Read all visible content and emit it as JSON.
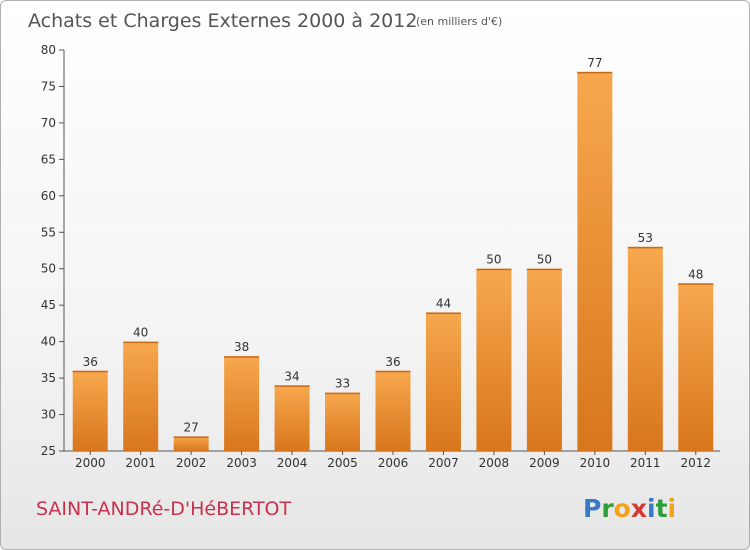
{
  "header": {
    "title": "Achats et Charges Externes 2000 à 2012",
    "unit": "(en milliers d'€)"
  },
  "footer": {
    "city": "SAINT-ANDRé-D'HéBERTOT",
    "brand_letters": [
      {
        "ch": "P",
        "color": "#3a78c8"
      },
      {
        "ch": "r",
        "color": "#2f9e3a"
      },
      {
        "ch": "o",
        "color": "#f2a31b"
      },
      {
        "ch": "x",
        "color": "#d63a2f"
      },
      {
        "ch": "i",
        "color": "#3a78c8"
      },
      {
        "ch": "t",
        "color": "#2f9e3a"
      },
      {
        "ch": "i",
        "color": "#f2a31b"
      }
    ]
  },
  "chart_data": {
    "type": "bar",
    "title": "Achats et Charges Externes 2000 à 2012",
    "subtitle": "(en milliers d'€)",
    "categories": [
      "2000",
      "2001",
      "2002",
      "2003",
      "2004",
      "2005",
      "2006",
      "2007",
      "2008",
      "2009",
      "2010",
      "2011",
      "2012"
    ],
    "values": [
      36,
      40,
      27,
      38,
      34,
      33,
      36,
      44,
      50,
      50,
      77,
      53,
      48
    ],
    "ylim": [
      25,
      80
    ],
    "yticks": [
      25,
      30,
      35,
      40,
      45,
      50,
      55,
      60,
      65,
      70,
      75,
      80
    ],
    "grid": false,
    "bar_color": "#f0922e",
    "bar_color_light": "#f7a84e",
    "bar_color_dark": "#d8761c"
  }
}
